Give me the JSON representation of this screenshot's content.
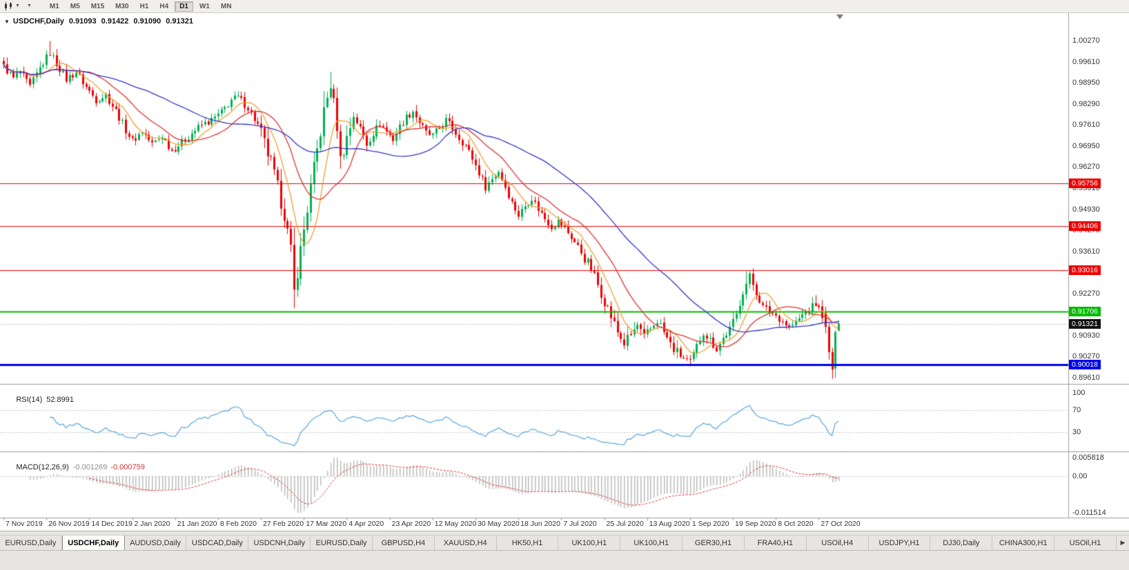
{
  "toolbar": {
    "timeframes": [
      "M1",
      "M5",
      "M15",
      "M30",
      "H1",
      "H4",
      "D1",
      "W1",
      "MN"
    ],
    "active_timeframe": "D1",
    "chart_type_icon": "candlestick-chart-icon",
    "dropdown_icon": "chevron-down-icon"
  },
  "chart": {
    "symbol_period": "USDCHF,Daily",
    "ohlc": {
      "open": "0.91093",
      "high": "0.91422",
      "low": "0.91090",
      "close": "0.91321"
    }
  },
  "indicators": {
    "rsi": {
      "name": "RSI(14)",
      "value": "52.8991",
      "period": 14,
      "color": "#55a5e0",
      "levels": [
        {
          "value": 100,
          "label": "100",
          "dotted": false
        },
        {
          "value": 70,
          "label": "70",
          "dotted": true
        },
        {
          "value": 30,
          "label": "30",
          "dotted": true
        }
      ]
    },
    "macd": {
      "name": "MACD(12,26,9)",
      "value": "-0.001269",
      "signal_value": "-0.000759",
      "fast": 12,
      "slow": 26,
      "signal": 9,
      "axis_labels": [
        "0.005818",
        "0.00",
        "-0.011514"
      ],
      "axis_max": 0.005818,
      "axis_min": -0.011514,
      "hist_color": "#bcbcbc",
      "signal_color": "#e03030"
    }
  },
  "tabs": {
    "items": [
      {
        "label": "EURUSD,Daily",
        "active": false
      },
      {
        "label": "USDCHF,Daily",
        "active": true
      },
      {
        "label": "AUDUSD,Daily",
        "active": false
      },
      {
        "label": "USDCAD,Daily",
        "active": false
      },
      {
        "label": "USDCNH,Daily",
        "active": false
      },
      {
        "label": "EURUSD,Daily",
        "active": false
      },
      {
        "label": "GBPUSD,H4",
        "active": false
      },
      {
        "label": "XAUUSD,H4",
        "active": false
      },
      {
        "label": "HK50,H1",
        "active": false
      },
      {
        "label": "UK100,H1",
        "active": false
      },
      {
        "label": "UK100,H1",
        "active": false
      },
      {
        "label": "GER30,H1",
        "active": false
      },
      {
        "label": "FRA40,H1",
        "active": false
      },
      {
        "label": "USOil,H4",
        "active": false
      },
      {
        "label": "USDJPY,H1",
        "active": false
      },
      {
        "label": "DJ30,Daily",
        "active": false
      },
      {
        "label": "CHINA300,H1",
        "active": false
      },
      {
        "label": "USOil,H1",
        "active": false
      }
    ],
    "scroll_right_icon": "chevron-right-icon"
  },
  "chart_data": {
    "type": "candlestick",
    "symbol": "USDCHF",
    "period": "Daily",
    "bars": 254,
    "price_axis": {
      "top": 1.0027,
      "bottom": 0.8961,
      "labels": [
        "1.00270",
        "0.99610",
        "0.98950",
        "0.98290",
        "0.97610",
        "0.96950",
        "0.96270",
        "0.95610",
        "0.94930",
        "0.94270",
        "0.93610",
        "0.92930",
        "0.92270",
        "0.91610",
        "0.90930",
        "0.90270",
        "0.89610"
      ]
    },
    "date_labels": [
      "7 Nov 2019",
      "26 Nov 2019",
      "14 Dec 2019",
      "2 Jan 2020",
      "21 Jan 2020",
      "8 Feb 2020",
      "27 Feb 2020",
      "17 Mar 2020",
      "4 Apr 2020",
      "23 Apr 2020",
      "12 May 2020",
      "30 May 2020",
      "18 Jun 2020",
      "7 Jul 2020",
      "25 Jul 2020",
      "13 Aug 2020",
      "1 Sep 2020",
      "19 Sep 2020",
      "8 Oct 2020",
      "27 Oct 2020"
    ],
    "hlines": [
      {
        "price": 0.95756,
        "label": "0.95756",
        "color": "#ee0000",
        "width": 1
      },
      {
        "price": 0.94406,
        "label": "0.94406",
        "color": "#ee0000",
        "width": 1
      },
      {
        "price": 0.93016,
        "label": "0.93016",
        "color": "#ee0000",
        "width": 1
      },
      {
        "price": 0.91706,
        "label": "0.91706",
        "color": "#00bb00",
        "width": 2
      },
      {
        "price": 0.90018,
        "label": "0.90018",
        "color": "#0000e8",
        "width": 3
      }
    ],
    "current_price": {
      "price": 0.91321,
      "label": "0.91321",
      "badge_color": "#111111"
    },
    "moving_averages": [
      {
        "period": 8,
        "color": "#f0a030"
      },
      {
        "period": 18,
        "color": "#e03030"
      },
      {
        "period": 45,
        "color": "#3333cc"
      }
    ],
    "colors": {
      "bull": "#00b050",
      "bear": "#ee0000",
      "background": "#ffffff",
      "separator": "#9e9b98"
    },
    "waypoints": [
      [
        0,
        0.9945
      ],
      [
        3,
        0.9908
      ],
      [
        5,
        0.9928
      ],
      [
        8,
        0.988
      ],
      [
        11,
        0.994
      ],
      [
        14,
        0.999
      ],
      [
        16,
        0.9955
      ],
      [
        19,
        0.9905
      ],
      [
        22,
        0.9928
      ],
      [
        25,
        0.988
      ],
      [
        28,
        0.984
      ],
      [
        31,
        0.9855
      ],
      [
        34,
        0.9805
      ],
      [
        37,
        0.9745
      ],
      [
        39,
        0.971
      ],
      [
        42,
        0.974
      ],
      [
        45,
        0.97
      ],
      [
        48,
        0.9725
      ],
      [
        51,
        0.968
      ],
      [
        54,
        0.9705
      ],
      [
        57,
        0.9735
      ],
      [
        60,
        0.976
      ],
      [
        63,
        0.9775
      ],
      [
        66,
        0.98
      ],
      [
        69,
        0.984
      ],
      [
        71,
        0.9848
      ],
      [
        74,
        0.9815
      ],
      [
        77,
        0.976
      ],
      [
        79,
        0.97
      ],
      [
        81,
        0.964
      ],
      [
        83,
        0.956
      ],
      [
        85,
        0.948
      ],
      [
        87,
        0.936
      ],
      [
        88,
        0.923
      ],
      [
        89,
        0.93
      ],
      [
        91,
        0.943
      ],
      [
        93,
        0.956
      ],
      [
        95,
        0.968
      ],
      [
        97,
        0.98
      ],
      [
        99,
        0.989
      ],
      [
        101,
        0.976
      ],
      [
        102,
        0.965
      ],
      [
        104,
        0.972
      ],
      [
        106,
        0.979
      ],
      [
        108,
        0.975
      ],
      [
        110,
        0.97
      ],
      [
        112,
        0.9735
      ],
      [
        114,
        0.9765
      ],
      [
        116,
        0.974
      ],
      [
        118,
        0.9715
      ],
      [
        120,
        0.9755
      ],
      [
        122,
        0.9785
      ],
      [
        124,
        0.9805
      ],
      [
        126,
        0.977
      ],
      [
        128,
        0.9735
      ],
      [
        130,
        0.9725
      ],
      [
        132,
        0.975
      ],
      [
        134,
        0.9775
      ],
      [
        136,
        0.975
      ],
      [
        138,
        0.972
      ],
      [
        140,
        0.9695
      ],
      [
        142,
        0.9655
      ],
      [
        144,
        0.961
      ],
      [
        146,
        0.9565
      ],
      [
        148,
        0.959
      ],
      [
        150,
        0.9615
      ],
      [
        152,
        0.9565
      ],
      [
        154,
        0.9515
      ],
      [
        156,
        0.9475
      ],
      [
        158,
        0.9505
      ],
      [
        160,
        0.953
      ],
      [
        162,
        0.9495
      ],
      [
        164,
        0.9465
      ],
      [
        166,
        0.944
      ],
      [
        168,
        0.9455
      ],
      [
        170,
        0.9435
      ],
      [
        172,
        0.9405
      ],
      [
        174,
        0.9375
      ],
      [
        176,
        0.934
      ],
      [
        178,
        0.9305
      ],
      [
        180,
        0.9255
      ],
      [
        182,
        0.9205
      ],
      [
        184,
        0.9155
      ],
      [
        186,
        0.9105
      ],
      [
        188,
        0.907
      ],
      [
        190,
        0.9095
      ],
      [
        192,
        0.9125
      ],
      [
        194,
        0.9085
      ],
      [
        196,
        0.9115
      ],
      [
        198,
        0.9145
      ],
      [
        200,
        0.9105
      ],
      [
        202,
        0.9065
      ],
      [
        204,
        0.904
      ],
      [
        206,
        0.9022
      ],
      [
        208,
        0.9008
      ],
      [
        210,
        0.906
      ],
      [
        212,
        0.9105
      ],
      [
        214,
        0.908
      ],
      [
        216,
        0.9052
      ],
      [
        218,
        0.9085
      ],
      [
        220,
        0.9115
      ],
      [
        222,
        0.916
      ],
      [
        224,
        0.9235
      ],
      [
        226,
        0.9282
      ],
      [
        228,
        0.923
      ],
      [
        230,
        0.9185
      ],
      [
        232,
        0.917
      ],
      [
        234,
        0.9158
      ],
      [
        236,
        0.914
      ],
      [
        238,
        0.912
      ],
      [
        240,
        0.9135
      ],
      [
        242,
        0.916
      ],
      [
        244,
        0.9178
      ],
      [
        246,
        0.9195
      ],
      [
        248,
        0.916
      ],
      [
        249,
        0.9122
      ],
      [
        250,
        0.9042
      ],
      [
        251,
        0.8987
      ],
      [
        252,
        0.9105
      ],
      [
        253,
        0.91321
      ]
    ],
    "overrides": {
      "14": {
        "h": 1.0026
      },
      "88": {
        "l": 0.9181
      },
      "99": {
        "h": 0.9928
      },
      "208": {
        "l": 0.8997
      },
      "225": {
        "h": 0.9298
      },
      "226": {
        "h": 0.9301
      },
      "246": {
        "h": 0.9222
      },
      "249": {
        "o": 0.9168,
        "h": 0.9185,
        "l": 0.9102,
        "c": 0.9122
      },
      "250": {
        "o": 0.9122,
        "h": 0.9133,
        "l": 0.9018,
        "c": 0.9042
      },
      "251": {
        "o": 0.9042,
        "h": 0.9056,
        "l": 0.8958,
        "c": 0.8987
      },
      "252": {
        "o": 0.899,
        "h": 0.9112,
        "l": 0.8961,
        "c": 0.9105
      },
      "253": {
        "o": 0.91093,
        "h": 0.91422,
        "l": 0.9109,
        "c": 0.91321
      }
    }
  }
}
